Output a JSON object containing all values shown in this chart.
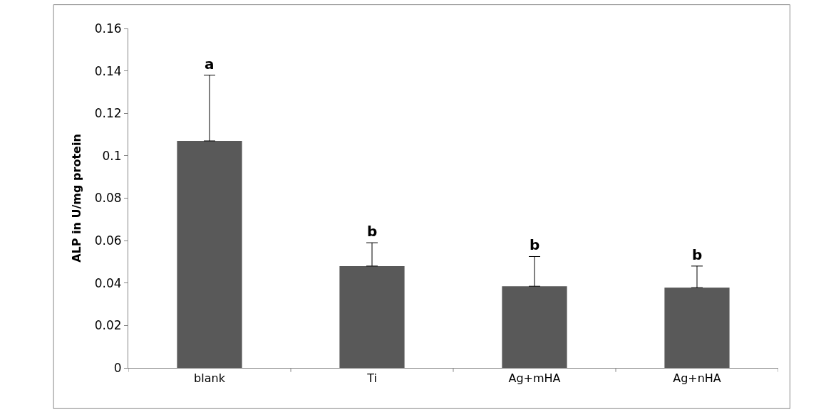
{
  "chart_data": {
    "type": "bar",
    "ylabel": "ALP in U/mg protein",
    "categories": [
      "blank",
      "Ti",
      "Ag+mHA",
      "Ag+nHA"
    ],
    "values": [
      0.107,
      0.048,
      0.0385,
      0.0378
    ],
    "errors": [
      [
        0.107,
        0.138
      ],
      [
        0.048,
        0.059
      ],
      [
        0.0385,
        0.0525
      ],
      [
        0.0378,
        0.048
      ]
    ],
    "color": "#595959",
    "ylim": [
      0,
      0.16
    ],
    "yticks": [
      0,
      0.02,
      0.04,
      0.06,
      0.08,
      0.1,
      0.12,
      0.14,
      0.16
    ],
    "annotations": [
      "a",
      "b",
      "b",
      "b"
    ]
  }
}
